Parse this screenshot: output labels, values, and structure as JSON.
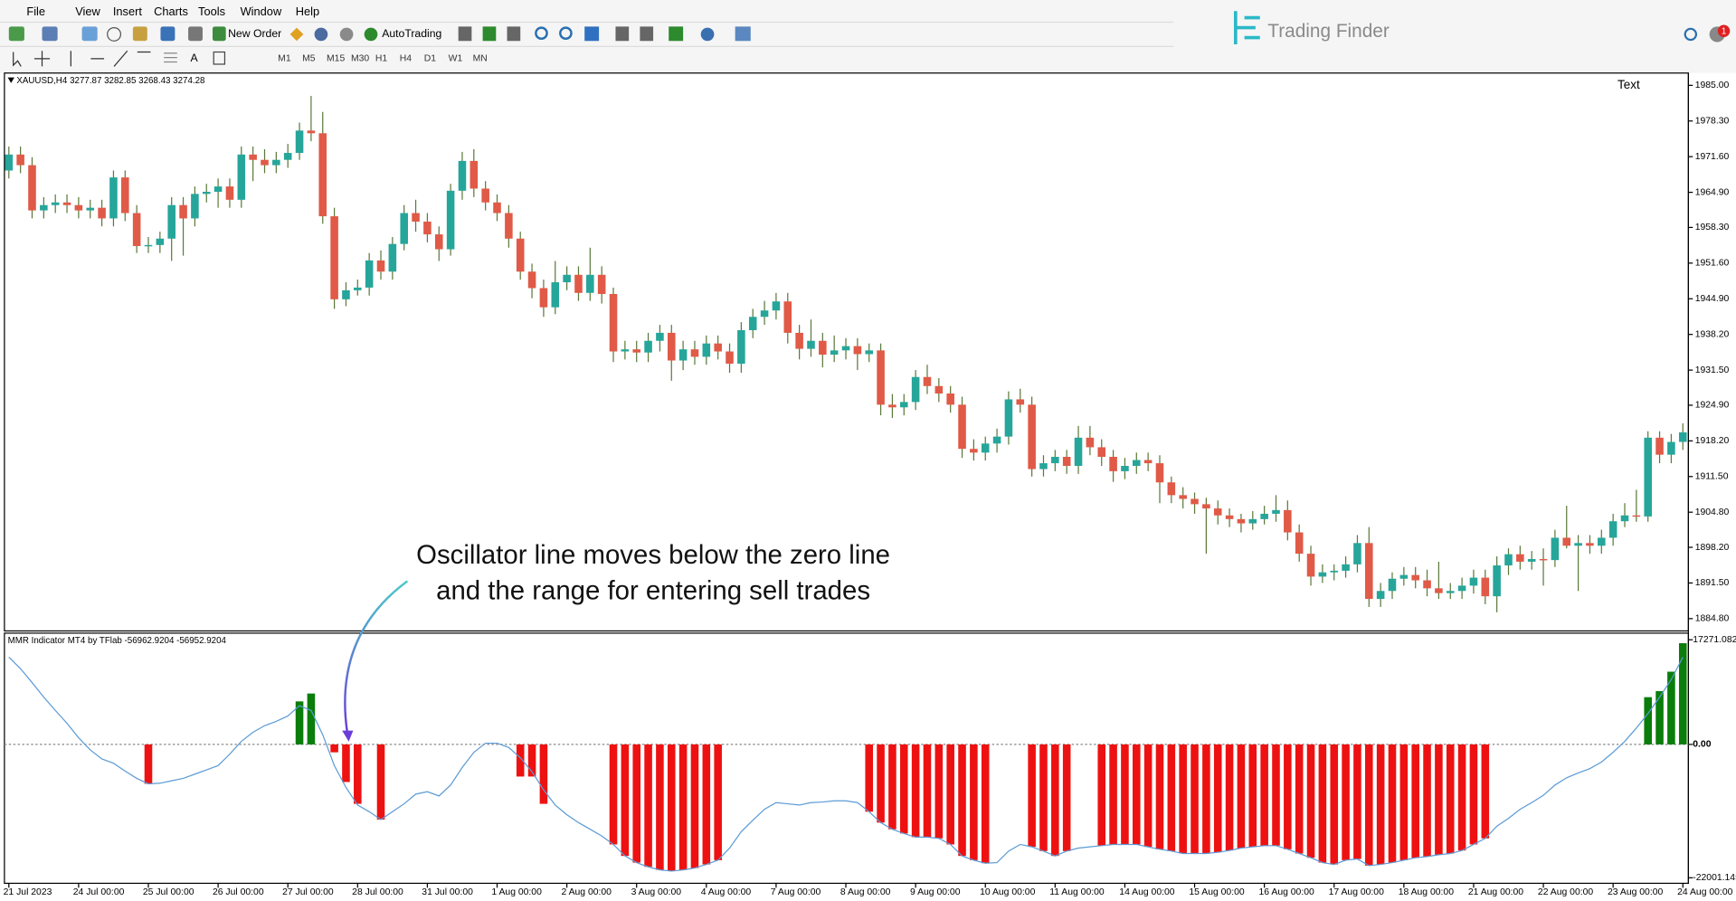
{
  "menu": [
    "File",
    "View",
    "Insert",
    "Charts",
    "Tools",
    "Window",
    "Help"
  ],
  "toolbar": {
    "new_order": "New Order",
    "autotrading": "AutoTrading",
    "timeframes": [
      "M1",
      "M5",
      "M15",
      "M30",
      "H1",
      "H4",
      "D1",
      "W1",
      "MN"
    ]
  },
  "brand": "Trading Finder",
  "badge": "1",
  "chart_data": [
    {
      "type": "candlestick",
      "symbol_label": "XAUUSD,H4",
      "ohlc_label": "3277.87 3282.85 3268.43 3274.28",
      "text_label": "Text",
      "annotation": [
        "Oscillator line moves below the zero line",
        "and the range for entering sell trades"
      ],
      "up_color": "#26a69a",
      "down_color": "#e05a47",
      "ylim": [
        1882.7,
        1987.1
      ],
      "yticks": [
        {
          "value": 1985,
          "label": "1985.00"
        },
        {
          "value": 1978.3,
          "label": "1978.30"
        },
        {
          "value": 1971.6,
          "label": "1971.60"
        },
        {
          "value": 1964.9,
          "label": "1964.90"
        },
        {
          "value": 1958.3,
          "label": "1958.30"
        },
        {
          "value": 1951.6,
          "label": "1951.60"
        },
        {
          "value": 1944.9,
          "label": "1944.90"
        },
        {
          "value": 1938.2,
          "label": "1938.20"
        },
        {
          "value": 1931.5,
          "label": "1931.50"
        },
        {
          "value": 1924.9,
          "label": "1924.90"
        },
        {
          "value": 1918.2,
          "label": "1918.20"
        },
        {
          "value": 1911.5,
          "label": "1911.50"
        },
        {
          "value": 1904.8,
          "label": "1904.80"
        },
        {
          "value": 1898.2,
          "label": "1898.20"
        },
        {
          "value": 1891.5,
          "label": "1891.50"
        },
        {
          "value": 1884.8,
          "label": "1884.80"
        }
      ],
      "open": [
        1969,
        1972,
        1970,
        1961.5,
        1962.5,
        1963,
        1962.5,
        1961.5,
        1962,
        1960,
        1967.7,
        1961,
        1954.8,
        1955,
        1956.2,
        1962.5,
        1960,
        1964.6,
        1965,
        1966,
        1963.5,
        1972,
        1971,
        1970,
        1971,
        1972.3,
        1976.5,
        1976,
        1960.4,
        1944.8,
        1946.5,
        1947,
        1952.1,
        1950,
        1955.2,
        1961,
        1959.4,
        1957,
        1954.2,
        1965.2,
        1970.8,
        1965.6,
        1963,
        1961,
        1956.2,
        1950,
        1946.9,
        1943.3,
        1948,
        1949.4,
        1946,
        1949.4,
        1945.8,
        1935,
        1935.4,
        1934.8,
        1937,
        1938.5,
        1933.3,
        1935.4,
        1934,
        1936.5,
        1935,
        1932.7,
        1939,
        1941.5,
        1942.7,
        1944.4,
        1938.5,
        1935.5,
        1937,
        1934.4,
        1935.2,
        1936,
        1934.5,
        1935.2,
        1925,
        1924.5,
        1925.5,
        1930.2,
        1928.5,
        1927.1,
        1925,
        1916.7,
        1916,
        1917.7,
        1919,
        1926,
        1925,
        1912.9,
        1914,
        1915.2,
        1913.5,
        1918.8,
        1917,
        1915.2,
        1912.5,
        1913.5,
        1914.6,
        1914,
        1910.4,
        1908,
        1907.3,
        1906.3,
        1905.5,
        1904.2,
        1903.5,
        1902.7,
        1903.5,
        1904.5,
        1905.2,
        1901,
        1897,
        1892.7,
        1893.5,
        1893.8,
        1895,
        1899,
        1888.5,
        1890,
        1892.3,
        1893,
        1892,
        1890.5,
        1889.6,
        1890,
        1891,
        1892.5,
        1889,
        1894.8,
        1896.9,
        1895.5,
        1896,
        1895.8,
        1900,
        1898.5,
        1899,
        1898.5,
        1900,
        1903.1,
        1904.2,
        1904,
        1918.8,
        1915.6,
        1918
      ],
      "high": [
        1973.5,
        1973.5,
        1971.5,
        1964,
        1964.5,
        1964.5,
        1964,
        1963.5,
        1963.5,
        1969,
        1969,
        1962.5,
        1956.5,
        1957.5,
        1964,
        1964,
        1966,
        1966.5,
        1967.5,
        1967.5,
        1973.5,
        1973.5,
        1973,
        1972.5,
        1974,
        1978,
        1983,
        1980,
        1962,
        1948,
        1948.5,
        1953.5,
        1954,
        1956.5,
        1962.5,
        1963.5,
        1961,
        1958.5,
        1966.5,
        1972.5,
        1973,
        1967,
        1964.5,
        1962.5,
        1957.5,
        1951.5,
        1948.5,
        1952,
        1951,
        1951,
        1954.5,
        1951,
        1947,
        1937,
        1937,
        1938.5,
        1940,
        1940,
        1937,
        1937,
        1938,
        1938,
        1936.5,
        1940.5,
        1943,
        1944.5,
        1946,
        1946,
        1940,
        1941,
        1938.5,
        1938,
        1937.5,
        1937.5,
        1936.5,
        1936.5,
        1927,
        1927,
        1931.5,
        1932.5,
        1930,
        1928.5,
        1926.5,
        1918.5,
        1919,
        1920.5,
        1927.5,
        1928,
        1926.5,
        1915.5,
        1916.5,
        1916.5,
        1921,
        1921,
        1918.5,
        1916.5,
        1915,
        1916,
        1916,
        1915.5,
        1911.5,
        1909.5,
        1908.5,
        1907.5,
        1907,
        1905.5,
        1904.5,
        1905,
        1906,
        1908,
        1907,
        1902.5,
        1898.5,
        1895,
        1895,
        1896.5,
        1900.5,
        1902,
        1891.5,
        1893.5,
        1894.5,
        1894.5,
        1894,
        1895.5,
        1891.5,
        1892.5,
        1894,
        1894,
        1896.5,
        1898,
        1898.5,
        1897.5,
        1898,
        1901.5,
        1906,
        1900.5,
        1900.5,
        1901.5,
        1904.5,
        1906.5,
        1909,
        1920,
        1920,
        1919.5,
        1921.5
      ],
      "low": [
        1967.5,
        1968.5,
        1960,
        1960,
        1961,
        1961,
        1960,
        1960,
        1958.5,
        1958.5,
        1959.5,
        1953.5,
        1953.5,
        1953.5,
        1952,
        1953,
        1958.5,
        1963,
        1962,
        1962,
        1962,
        1967,
        1968.5,
        1968.5,
        1969.5,
        1971,
        1974.5,
        1959,
        1943,
        1943.5,
        1945.5,
        1945.5,
        1948.5,
        1948.5,
        1954,
        1957.5,
        1955.5,
        1952,
        1953,
        1963.5,
        1964,
        1961.5,
        1959.5,
        1954.5,
        1948.5,
        1945,
        1941.5,
        1942,
        1946.5,
        1944.5,
        1944.5,
        1944,
        1933,
        1933.5,
        1933,
        1933,
        1935,
        1929.5,
        1931.5,
        1932.5,
        1932.5,
        1933.5,
        1931,
        1931,
        1937.5,
        1940,
        1941,
        1936.5,
        1933.5,
        1934,
        1932,
        1933,
        1933.5,
        1931.5,
        1933,
        1923,
        1922.5,
        1923,
        1924,
        1927,
        1925.5,
        1923.5,
        1915,
        1914.5,
        1914.5,
        1916,
        1917.5,
        1923.5,
        1911.5,
        1911.5,
        1912.5,
        1912,
        1912,
        1915.5,
        1913.5,
        1910.5,
        1911,
        1912,
        1912.5,
        1906.5,
        1906.5,
        1905.5,
        1904.5,
        1897,
        1902.5,
        1902,
        1901,
        1901.5,
        1902.5,
        1903,
        1899.5,
        1895.5,
        1891,
        1891.5,
        1892,
        1892.5,
        1893.5,
        1887,
        1887,
        1888.5,
        1891,
        1890.5,
        1889,
        1888.5,
        1888.5,
        1888.5,
        1889.5,
        1887.5,
        1886,
        1893,
        1894,
        1894,
        1891,
        1894.5,
        1898,
        1890,
        1897,
        1897,
        1898.5,
        1902,
        1903,
        1903,
        1914,
        1914,
        1916.5
      ],
      "close": [
        1972,
        1970,
        1961.5,
        1962.5,
        1963,
        1962.5,
        1961.5,
        1962,
        1960,
        1967.7,
        1961,
        1954.8,
        1955,
        1956.2,
        1962.5,
        1960,
        1964.6,
        1965,
        1966,
        1963.5,
        1972,
        1971,
        1970,
        1971,
        1972.3,
        1976.5,
        1976,
        1960.4,
        1944.8,
        1946.5,
        1947,
        1952.1,
        1950,
        1955.2,
        1961,
        1959.4,
        1957,
        1954.2,
        1965.2,
        1970.8,
        1965.6,
        1963,
        1961,
        1956.2,
        1950,
        1946.9,
        1943.3,
        1948,
        1949.4,
        1946,
        1949.4,
        1945.8,
        1935,
        1935.4,
        1934.8,
        1937,
        1938.5,
        1933.3,
        1935.4,
        1934,
        1936.5,
        1935,
        1932.7,
        1939,
        1941.5,
        1942.7,
        1944.4,
        1938.5,
        1935.5,
        1937,
        1934.4,
        1935.2,
        1936,
        1934.5,
        1935.2,
        1925,
        1924.5,
        1925.5,
        1930.2,
        1928.5,
        1927.1,
        1925,
        1916.7,
        1916,
        1917.7,
        1919,
        1926,
        1925,
        1912.9,
        1914,
        1915.2,
        1913.5,
        1918.8,
        1917,
        1915.2,
        1912.5,
        1913.5,
        1914.6,
        1914,
        1910.4,
        1908,
        1907.3,
        1906.3,
        1905.5,
        1904.2,
        1903.5,
        1902.7,
        1903.5,
        1904.5,
        1905.2,
        1901,
        1897,
        1892.7,
        1893.5,
        1893.8,
        1895,
        1899,
        1888.5,
        1890,
        1892.3,
        1893,
        1892,
        1890.5,
        1889.6,
        1890,
        1891,
        1892.5,
        1889,
        1894.8,
        1896.9,
        1895.5,
        1896,
        1895.8,
        1900,
        1898.5,
        1899,
        1898.5,
        1900,
        1903.1,
        1904.2,
        1904,
        1918.8,
        1915.6,
        1918,
        1919.8
      ]
    },
    {
      "type": "histogram",
      "title": "MMR Indicator MT4 by TFlab -56962.9204 -56952.9204",
      "positive_color": "#0a7d0a",
      "negative_color": "#ee1111",
      "line_color": "#5b9bd5",
      "ylim": [
        -22730,
        18180
      ],
      "yticks": [
        17271.082,
        {
          "value": 0,
          "label": "0.00"
        },
        -22001.145
      ],
      "x": [
        "21 Jul 2023",
        null,
        null,
        null,
        null,
        null,
        "24 Jul 00:00",
        null,
        null,
        null,
        null,
        null,
        "25 Jul 00:00",
        null,
        null,
        null,
        null,
        null,
        "26 Jul 00:00",
        null,
        null,
        null,
        null,
        null,
        "27 Jul 00:00",
        null,
        null,
        null,
        null,
        null,
        "28 Jul 00:00",
        null,
        null,
        null,
        null,
        null,
        "31 Jul 00:00",
        null,
        null,
        null,
        null,
        null,
        "1 Aug 00:00",
        null,
        null,
        null,
        null,
        null,
        "2 Aug 00:00",
        null,
        null,
        null,
        null,
        null,
        "3 Aug 00:00",
        null,
        null,
        null,
        null,
        null,
        "4 Aug 00:00",
        null,
        null,
        null,
        null,
        null,
        "7 Aug 00:00",
        null,
        null,
        null,
        null,
        null,
        "8 Aug 00:00",
        null,
        null,
        null,
        null,
        null,
        "9 Aug 00:00",
        null,
        null,
        null,
        null,
        null,
        "10 Aug 00:00",
        null,
        null,
        null,
        null,
        null,
        "11 Aug 00:00",
        null,
        null,
        null,
        null,
        null,
        "14 Aug 00:00",
        null,
        null,
        null,
        null,
        null,
        "15 Aug 00:00",
        null,
        null,
        null,
        null,
        null,
        "16 Aug 00:00",
        null,
        null,
        null,
        null,
        null,
        "17 Aug 00:00",
        null,
        null,
        null,
        null,
        null,
        "18 Aug 00:00",
        null,
        null,
        null,
        null,
        null,
        "21 Aug 00:00",
        null,
        null,
        null,
        null,
        null,
        "22 Aug 00:00",
        null,
        null,
        null,
        null,
        null,
        "23 Aug 00:00",
        null,
        null,
        null,
        null,
        null,
        "24 Aug 00:00"
      ],
      "histogram": [
        null,
        null,
        null,
        null,
        null,
        null,
        null,
        null,
        null,
        null,
        null,
        null,
        -6500,
        null,
        null,
        null,
        null,
        null,
        null,
        null,
        null,
        null,
        null,
        null,
        null,
        7100,
        8400,
        null,
        -1300,
        -6200,
        -9800,
        null,
        -12400,
        null,
        null,
        null,
        null,
        null,
        null,
        null,
        null,
        null,
        null,
        null,
        -5300,
        -5300,
        -9800,
        null,
        null,
        null,
        null,
        null,
        -16500,
        -18400,
        -19500,
        -20200,
        -20700,
        -20900,
        -20700,
        -20400,
        -19800,
        -19100,
        null,
        null,
        null,
        null,
        null,
        null,
        null,
        null,
        null,
        null,
        null,
        null,
        -11100,
        -12900,
        -14000,
        -14700,
        -15300,
        -15300,
        -15500,
        -16500,
        -18400,
        -19100,
        -19600,
        null,
        null,
        null,
        -16900,
        -17600,
        -18400,
        -17600,
        null,
        null,
        -16700,
        -16500,
        -16500,
        -16500,
        -16900,
        -17300,
        -17600,
        -18000,
        -18000,
        -18000,
        -17800,
        -17500,
        -17100,
        -16900,
        -16700,
        -16700,
        -17300,
        -18000,
        -18700,
        -19500,
        -19800,
        -19100,
        -18900,
        -20000,
        -19800,
        -19500,
        -19100,
        -18700,
        -18500,
        -18200,
        -18000,
        -17500,
        -16500,
        -15500,
        null,
        null,
        null,
        null,
        null,
        null,
        null,
        null,
        null,
        null,
        null,
        null,
        null,
        7800,
        8800,
        12000,
        16700
      ],
      "line": [
        14400,
        12500,
        10200,
        7800,
        5600,
        3500,
        1100,
        -900,
        -2400,
        -3100,
        -4400,
        -5600,
        -6500,
        -6400,
        -6000,
        -5600,
        -4900,
        -4200,
        -3500,
        -1600,
        500,
        2000,
        3100,
        3800,
        4700,
        6400,
        5600,
        1600,
        -3500,
        -7100,
        -10000,
        -11100,
        -12400,
        -11100,
        -9800,
        -8200,
        -7800,
        -8500,
        -6700,
        -3800,
        -1300,
        200,
        200,
        -500,
        -2200,
        -4500,
        -7500,
        -10000,
        -11600,
        -12900,
        -14000,
        -15100,
        -16500,
        -18400,
        -19500,
        -20200,
        -20700,
        -20900,
        -20700,
        -20400,
        -19800,
        -19100,
        -17100,
        -14400,
        -12500,
        -10700,
        -9600,
        -9800,
        -10000,
        -9600,
        -9500,
        -9300,
        -9300,
        -9600,
        -11100,
        -12900,
        -14000,
        -14700,
        -15300,
        -15300,
        -15500,
        -16500,
        -18400,
        -19100,
        -19600,
        -19500,
        -17600,
        -16500,
        -16900,
        -17600,
        -18400,
        -17600,
        -17100,
        -16900,
        -16700,
        -16500,
        -16500,
        -16500,
        -16900,
        -17300,
        -17600,
        -18000,
        -18000,
        -18000,
        -17800,
        -17500,
        -17100,
        -16900,
        -16700,
        -16700,
        -17300,
        -18000,
        -18700,
        -19500,
        -19800,
        -19100,
        -18900,
        -20000,
        -19800,
        -19500,
        -19100,
        -18700,
        -18500,
        -18200,
        -18000,
        -17500,
        -16500,
        -15500,
        -13500,
        -12200,
        -10700,
        -9600,
        -8400,
        -6700,
        -5500,
        -4700,
        -4000,
        -2900,
        -1300,
        500,
        2700,
        5100,
        7800,
        10700,
        14400
      ]
    }
  ]
}
